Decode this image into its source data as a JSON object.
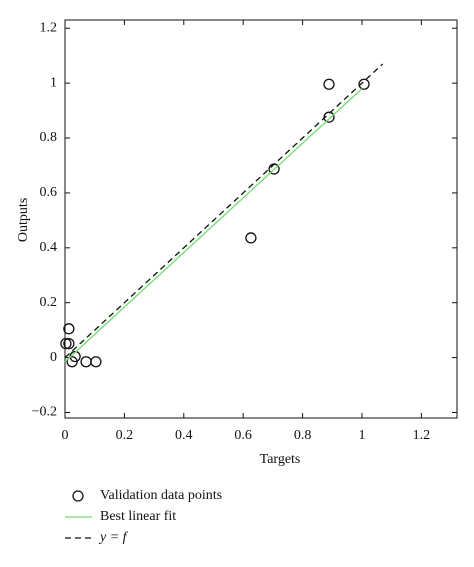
{
  "chart_data": {
    "type": "scatter",
    "x_label": "Targets",
    "y_label": "Outputs",
    "xlim": [
      0,
      1.32
    ],
    "ylim": [
      -0.22,
      1.23
    ],
    "xticks": [
      0,
      0.2,
      0.4,
      0.6,
      0.8,
      1,
      1.2
    ],
    "yticks": [
      {
        "value": -0.2,
        "label": "−0.2"
      },
      0,
      0.2,
      0.4,
      0.6,
      0.8,
      1,
      1.2
    ],
    "series": [
      {
        "name": "Validation data points",
        "mode": "markers",
        "color": "#111111",
        "x": [
          0.889,
          1.007,
          0.889,
          0.704,
          0.626,
          0.013,
          0.003,
          0.013,
          0.034,
          0.024,
          0.071,
          0.104
        ],
        "values": [
          0.996,
          0.996,
          0.876,
          0.687,
          0.436,
          0.105,
          0.051,
          0.051,
          0.004,
          -0.015,
          -0.015,
          -0.015
        ]
      },
      {
        "name": "Best linear fit",
        "mode": "line",
        "dash": false,
        "color": "#6ee06e",
        "x": [
          0,
          1
        ],
        "values": [
          -0.015,
          0.98
        ]
      },
      {
        "name": "y = f",
        "mode": "line",
        "dash": true,
        "color": "#111111",
        "x": [
          0,
          1.07
        ],
        "values": [
          0,
          1.07
        ]
      }
    ]
  }
}
